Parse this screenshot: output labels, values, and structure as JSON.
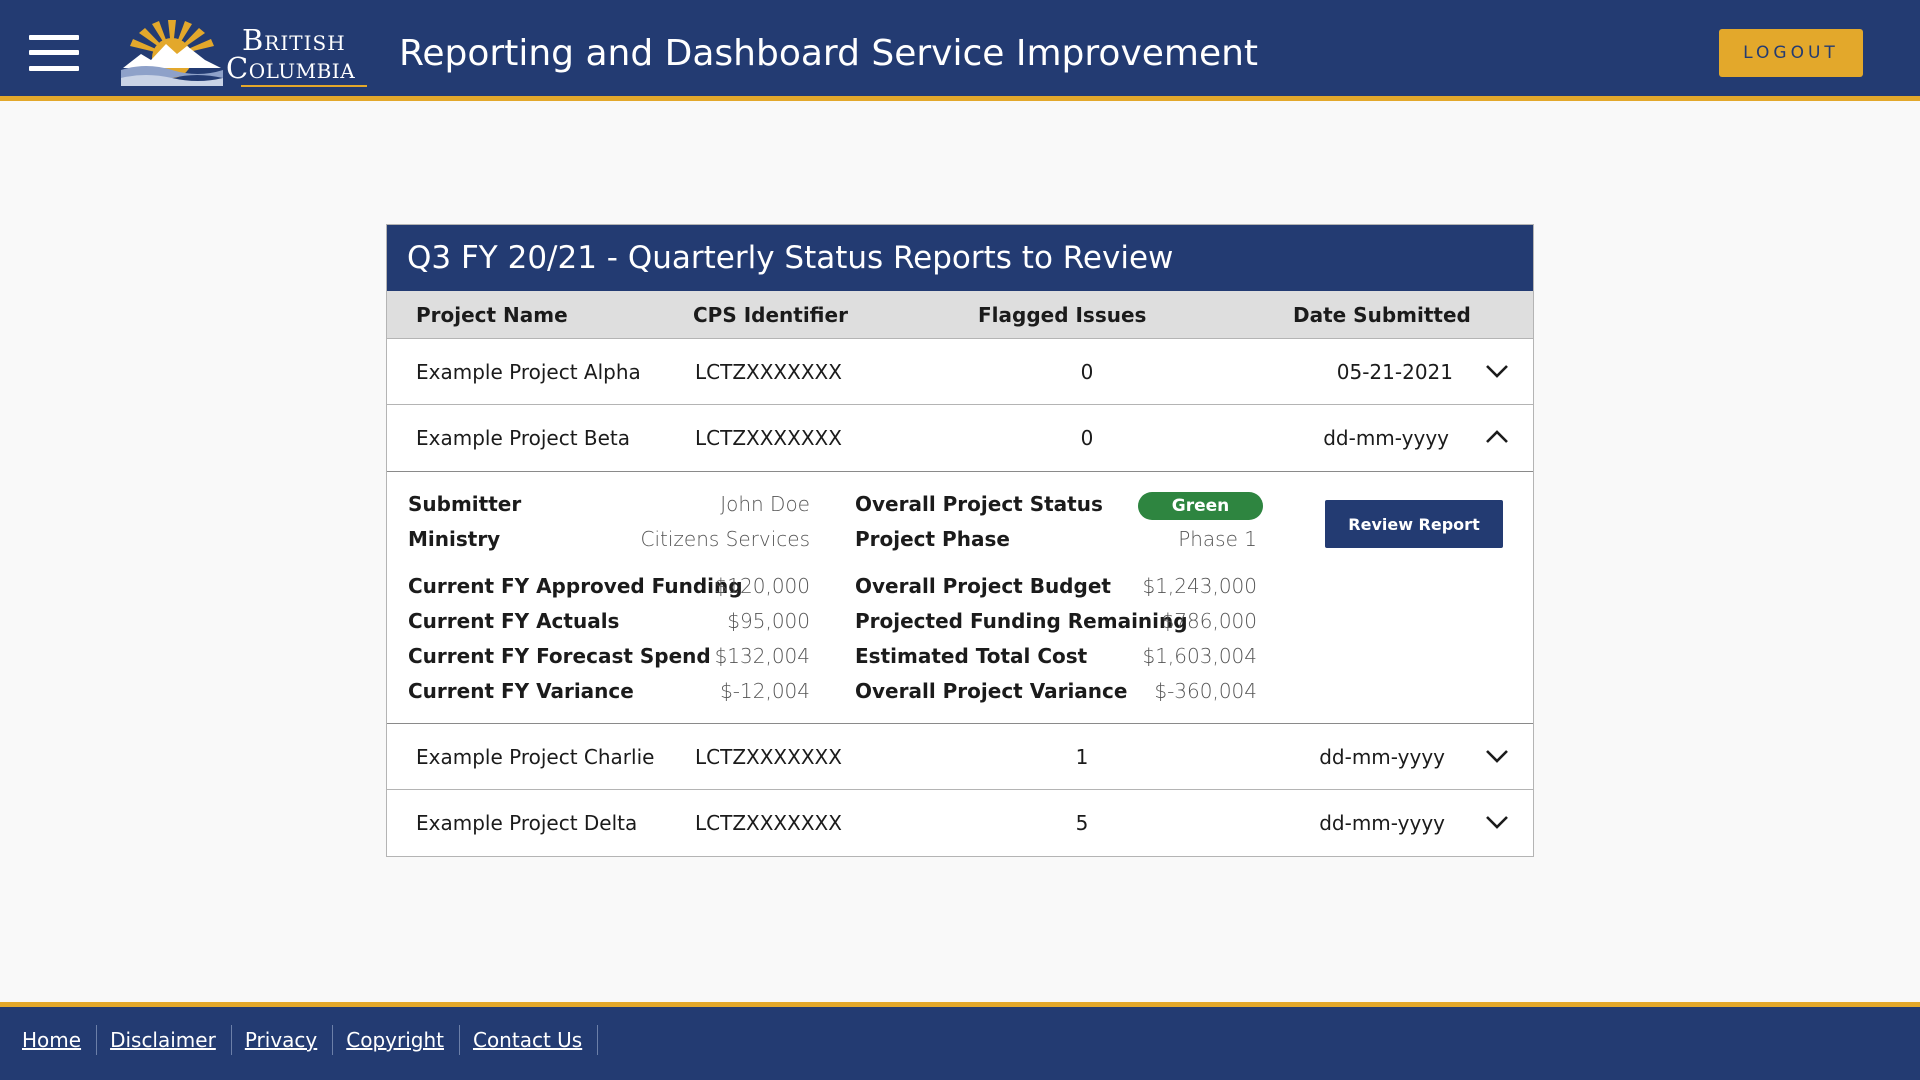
{
  "header": {
    "logo": {
      "line1": "British",
      "line2": "Columbia"
    },
    "title": "Reporting and Dashboard Service Improvement",
    "logout_label": "LOGOUT"
  },
  "panel": {
    "title": "Q3 FY 20/21 - Quarterly Status Reports to Review",
    "columns": [
      "Project Name",
      "CPS Identifier",
      "Flagged Issues",
      "Date Submitted"
    ],
    "rows": [
      {
        "name": "Example Project Alpha",
        "cps": "LCTZXXXXXXX",
        "flagged": "0",
        "date": "05-21-2021",
        "expanded": false
      },
      {
        "name": "Example Project Beta",
        "cps": "LCTZXXXXXXX",
        "flagged": "0",
        "date": "dd-mm-yyyy",
        "expanded": true
      },
      {
        "name": "Example Project Charlie",
        "cps": "LCTZXXXXXXX",
        "flagged": "1",
        "date": "dd-mm-yyyy",
        "expanded": false
      },
      {
        "name": "Example Project Delta",
        "cps": "LCTZXXXXXXX",
        "flagged": "5",
        "date": "dd-mm-yyyy",
        "expanded": false
      }
    ],
    "detail": {
      "submitter_label": "Submitter",
      "submitter": "John Doe",
      "ministry_label": "Ministry",
      "ministry": "Citizens Services",
      "approved_funding_label": "Current FY Approved Funding",
      "approved_funding": "$120,000",
      "actuals_label": "Current FY Actuals",
      "actuals": "$95,000",
      "forecast_label": "Current FY Forecast Spend",
      "forecast": "$132,004",
      "variance_label": "Current FY Variance",
      "variance": "$-12,004",
      "status_label": "Overall Project Status",
      "status": "Green",
      "status_color": "#2e8540",
      "phase_label": "Project Phase",
      "phase": "Phase 1",
      "budget_label": "Overall Project Budget",
      "budget": "$1,243,000",
      "remaining_label": "Projected Funding Remaining",
      "remaining": "$786,000",
      "estimated_label": "Estimated Total Cost",
      "estimated": "$1,603,004",
      "overall_variance_label": "Overall Project Variance",
      "overall_variance": "$-360,004",
      "review_button_label": "Review Report"
    }
  },
  "footer": {
    "links": [
      "Home",
      "Disclaimer",
      "Privacy",
      "Copyright",
      "Contact Us"
    ]
  },
  "colors": {
    "brand_blue": "#233b72",
    "brand_gold": "#e3a82b"
  }
}
